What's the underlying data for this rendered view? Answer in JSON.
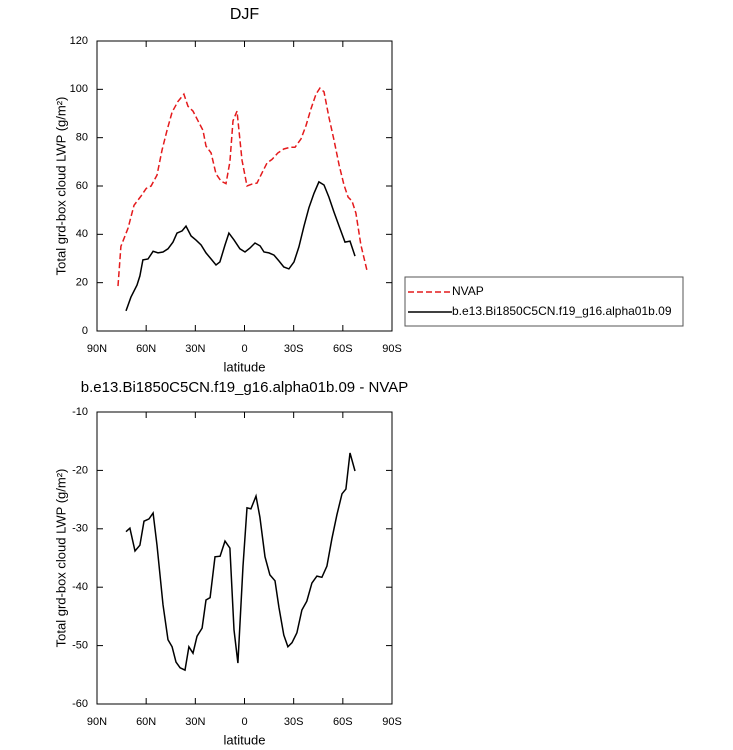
{
  "chart_data": [
    {
      "type": "line",
      "title": "DJF",
      "xlabel": "latitude",
      "ylabel": "Total grd-box cloud LWP (g/m²)",
      "xlim": [
        90,
        -90
      ],
      "ylim": [
        0,
        120
      ],
      "xticks": [
        {
          "value": 90,
          "label": "90N"
        },
        {
          "value": 60,
          "label": "60N"
        },
        {
          "value": 30,
          "label": "30N"
        },
        0,
        {
          "value": -30,
          "label": "30S"
        },
        {
          "value": -60,
          "label": "60S"
        },
        {
          "value": -90,
          "label": "90S"
        }
      ],
      "yticks": [
        0,
        20,
        40,
        60,
        80,
        100,
        120
      ],
      "legend": "right",
      "series": [
        {
          "name": "NVAP",
          "color": "#e41a1c",
          "dashed": true,
          "x": [
            77.2,
            75.4,
            71,
            67.4,
            63,
            60,
            57,
            53.4,
            50.3,
            47.3,
            44.2,
            40.6,
            37,
            34.5,
            31.4,
            28.4,
            25.3,
            23.5,
            20.4,
            17.4,
            14.3,
            11.3,
            8.9,
            7,
            4.6,
            1.5,
            -1.5,
            -4.6,
            -7.6,
            -10.7,
            -13.7,
            -16.8,
            -20.4,
            -24,
            -27.7,
            -30.8,
            -34.5,
            -37.5,
            -40.6,
            -43.6,
            -46,
            -48.5,
            -51.5,
            -54.6,
            -57.7,
            -60.7,
            -63.2,
            -65.6,
            -68,
            -71,
            -74.7
          ],
          "values": [
            18.6,
            35,
            42.6,
            52,
            56,
            59,
            60,
            64.5,
            75,
            83,
            90.6,
            95,
            98,
            93,
            91,
            87,
            83,
            76.5,
            73.7,
            65,
            62,
            61,
            70,
            87,
            91,
            70.7,
            60,
            60.8,
            61.2,
            65.4,
            69.5,
            71,
            73.7,
            75.3,
            76,
            76,
            79.5,
            85,
            92,
            98,
            100.5,
            99,
            88.5,
            79,
            68.7,
            60.4,
            55.4,
            53.8,
            48.8,
            35.6,
            25.2
          ]
        },
        {
          "name": "b.e13.Bi1850C5CN.f19_g16.alpha01b.09",
          "color": "#000000",
          "dashed": false,
          "x": [
            72.3,
            69.3,
            65.6,
            63.8,
            62,
            58.9,
            55.8,
            52.8,
            49.7,
            46.7,
            43.6,
            41.2,
            38.1,
            35.7,
            32.6,
            29.6,
            26.5,
            23.5,
            20.4,
            17.4,
            15,
            11.9,
            9.5,
            6.4,
            2.8,
            -0.3,
            -3.3,
            -6.4,
            -9.5,
            -11.9,
            -14.9,
            -18,
            -21,
            -24,
            -27.1,
            -30.2,
            -33.2,
            -36.3,
            -39.3,
            -42.4,
            -45.4,
            -48.5,
            -51.5,
            -54.6,
            -57.7,
            -61.3,
            -64.4,
            -67.4
          ],
          "values": [
            8.3,
            14,
            19,
            22.8,
            29.4,
            29.8,
            33,
            32.3,
            32.7,
            34,
            36.8,
            40.5,
            41.4,
            43.4,
            39.3,
            37.6,
            35.6,
            32.3,
            29.8,
            27.3,
            28.6,
            35.6,
            40.5,
            37.7,
            34,
            32.7,
            34.3,
            36.4,
            35.2,
            32.7,
            32.3,
            31.4,
            29,
            26.5,
            25.7,
            28.6,
            34.8,
            43.4,
            51,
            57,
            61.7,
            60.4,
            55.4,
            49.2,
            43.4,
            36.8,
            37.2,
            31
          ]
        }
      ]
    },
    {
      "type": "line",
      "title": "b.e13.Bi1850C5CN.f19_g16.alpha01b.09 - NVAP",
      "xlabel": "latitude",
      "ylabel": "Total grd-box cloud LWP (g/m²)",
      "xlim": [
        90,
        -90
      ],
      "ylim": [
        -60,
        -10
      ],
      "xticks": [
        {
          "value": 90,
          "label": "90N"
        },
        {
          "value": 60,
          "label": "60N"
        },
        {
          "value": 30,
          "label": "30N"
        },
        0,
        {
          "value": -30,
          "label": "30S"
        },
        {
          "value": -60,
          "label": "60S"
        },
        {
          "value": -90,
          "label": "90S"
        }
      ],
      "yticks": [
        -60,
        -50,
        -40,
        -30,
        -20,
        -10
      ],
      "series": [
        {
          "color": "#000000",
          "dashed": false,
          "x": [
            72.3,
            69.9,
            66.8,
            63.8,
            61.3,
            58.3,
            55.8,
            53.4,
            49.7,
            46.7,
            44.2,
            41.8,
            39.3,
            36.3,
            33.9,
            31.4,
            29,
            25.9,
            23.5,
            21,
            18,
            14.9,
            11.9,
            8.9,
            6.4,
            4,
            0.9,
            -1.5,
            -3.9,
            -7,
            -9.4,
            -12.5,
            -15.5,
            -18.6,
            -21,
            -24,
            -26.5,
            -29,
            -32,
            -35,
            -38,
            -41.1,
            -44.2,
            -47.2,
            -50.3,
            -53.3,
            -56.4,
            -59.5,
            -61.9,
            -64.4,
            -67.4
          ],
          "values": [
            -30.5,
            -29.9,
            -33.8,
            -32.8,
            -28.7,
            -28.3,
            -27.3,
            -32.8,
            -43,
            -49,
            -50.2,
            -52.8,
            -53.8,
            -54.2,
            -50.2,
            -51.3,
            -48.4,
            -47,
            -42.2,
            -41.8,
            -34.8,
            -34.7,
            -32.1,
            -33.3,
            -47.3,
            -53,
            -36.4,
            -26.4,
            -26.6,
            -24.4,
            -28,
            -34.8,
            -37.9,
            -38.9,
            -43.4,
            -48.2,
            -50.2,
            -49.5,
            -47.8,
            -43.9,
            -42.4,
            -39.3,
            -38.1,
            -38.3,
            -36.4,
            -31.7,
            -27.6,
            -24,
            -23.2,
            -17,
            -20.1
          ]
        }
      ]
    }
  ]
}
